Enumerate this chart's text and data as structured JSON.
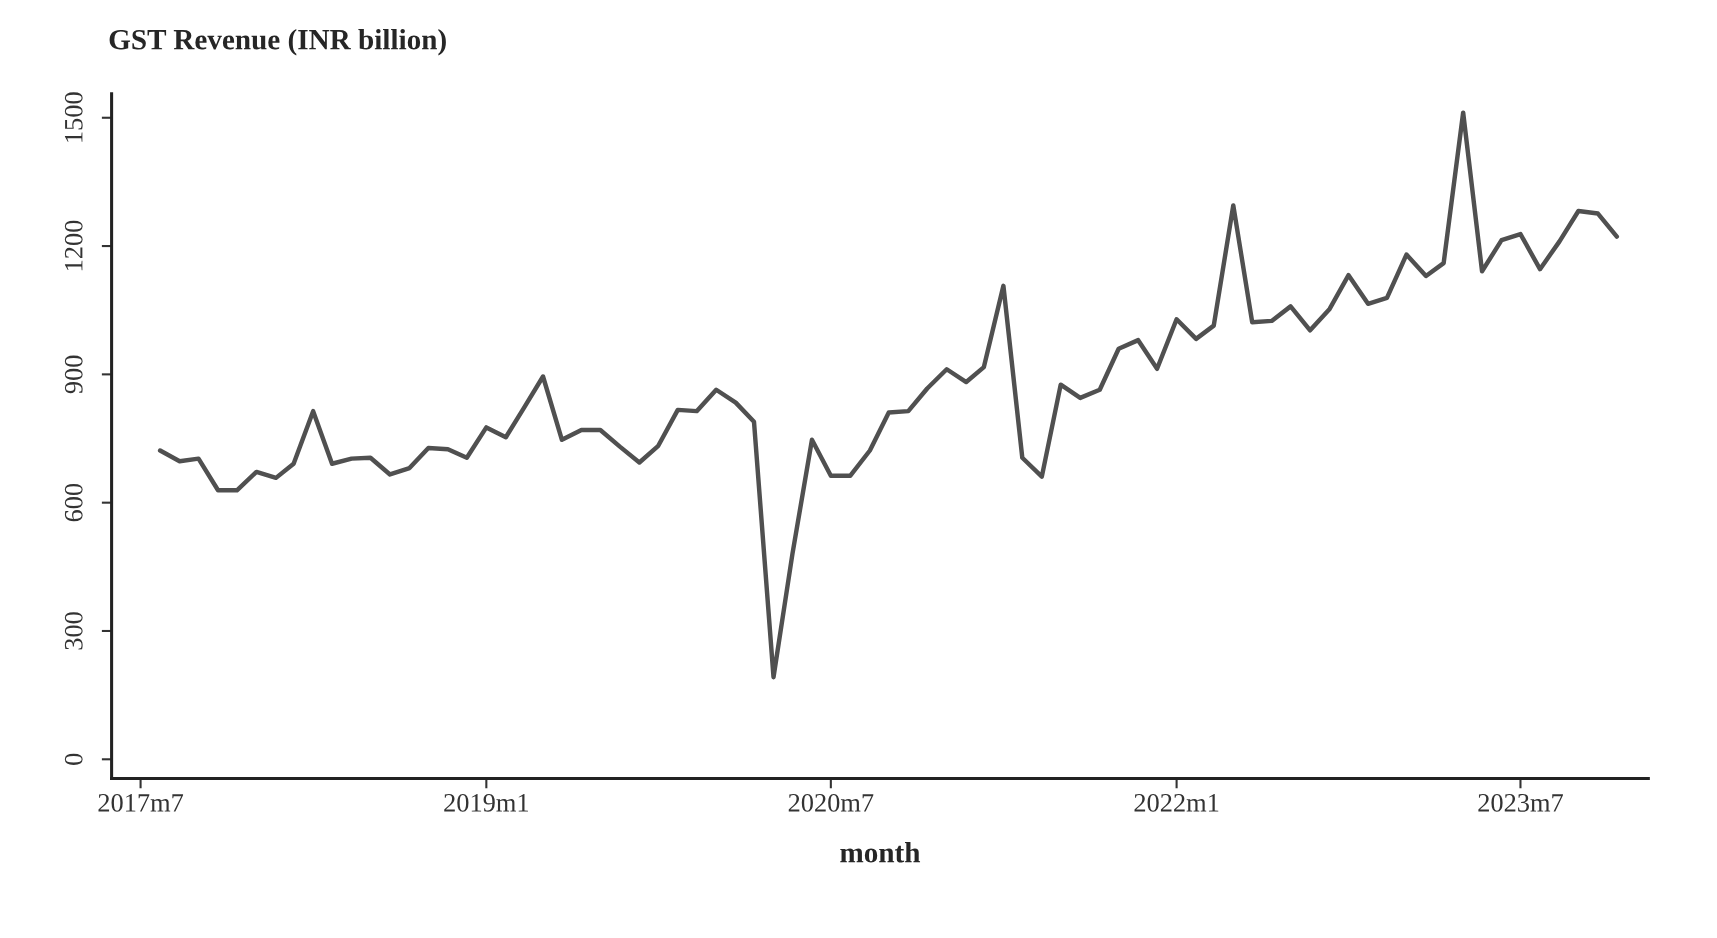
{
  "chart_data": {
    "type": "line",
    "title": "GST Revenue (INR billion)",
    "xlabel": "month",
    "x": [
      "2017-08",
      "2017-09",
      "2017-10",
      "2017-11",
      "2017-12",
      "2018-01",
      "2018-02",
      "2018-03",
      "2018-04",
      "2018-05",
      "2018-06",
      "2018-07",
      "2018-08",
      "2018-09",
      "2018-10",
      "2018-11",
      "2018-12",
      "2019-01",
      "2019-02",
      "2019-03",
      "2019-04",
      "2019-05",
      "2019-06",
      "2019-07",
      "2019-08",
      "2019-09",
      "2019-10",
      "2019-11",
      "2019-12",
      "2020-01",
      "2020-02",
      "2020-03",
      "2020-04",
      "2020-05",
      "2020-06",
      "2020-07",
      "2020-08",
      "2020-09",
      "2020-10",
      "2020-11",
      "2020-12",
      "2021-01",
      "2021-02",
      "2021-03",
      "2021-04",
      "2021-05",
      "2021-06",
      "2021-07",
      "2021-08",
      "2021-09",
      "2021-10",
      "2021-11",
      "2021-12",
      "2022-01",
      "2022-02",
      "2022-03",
      "2022-04",
      "2022-05",
      "2022-06",
      "2022-07",
      "2022-08",
      "2022-09",
      "2022-10",
      "2022-11",
      "2022-12",
      "2023-01",
      "2023-02",
      "2023-03",
      "2023-04",
      "2023-05",
      "2023-06",
      "2023-07",
      "2023-08",
      "2023-09",
      "2023-10",
      "2023-11",
      "2023-12"
    ],
    "series": [
      {
        "color": "#505050",
        "values": [
          722,
          697,
          703,
          629,
          629,
          672,
          658,
          691,
          814,
          691,
          703,
          705,
          666,
          681,
          728,
          725,
          705,
          776,
          753,
          820,
          895,
          747,
          770,
          770,
          731,
          694,
          733,
          817,
          814,
          864,
          834,
          789,
          192,
          480,
          747,
          663,
          663,
          722,
          811,
          814,
          867,
          912,
          882,
          917,
          1107,
          705,
          661,
          876,
          845,
          864,
          960,
          980,
          913,
          1029,
          983,
          1014,
          1295,
          1022,
          1025,
          1059,
          1003,
          1053,
          1132,
          1065,
          1079,
          1180,
          1130,
          1160,
          1512,
          1141,
          1214,
          1228,
          1146,
          1211,
          1282,
          1276,
          1222
        ]
      }
    ],
    "xlim": [
      "2017-05-16",
      "2024-01-20"
    ],
    "xticks": [
      {
        "value": "2017-07",
        "label": "2017m7"
      },
      {
        "value": "2019-01",
        "label": "2019m1"
      },
      {
        "value": "2020-07",
        "label": "2020m7"
      },
      {
        "value": "2022-01",
        "label": "2022m1"
      },
      {
        "value": "2023-07",
        "label": "2023m7"
      }
    ],
    "ylim": [
      -45,
      1556
    ],
    "yticks": [
      0,
      300,
      600,
      900,
      1200,
      1500
    ],
    "grid": false,
    "marker": "none",
    "line_style": "solid"
  }
}
